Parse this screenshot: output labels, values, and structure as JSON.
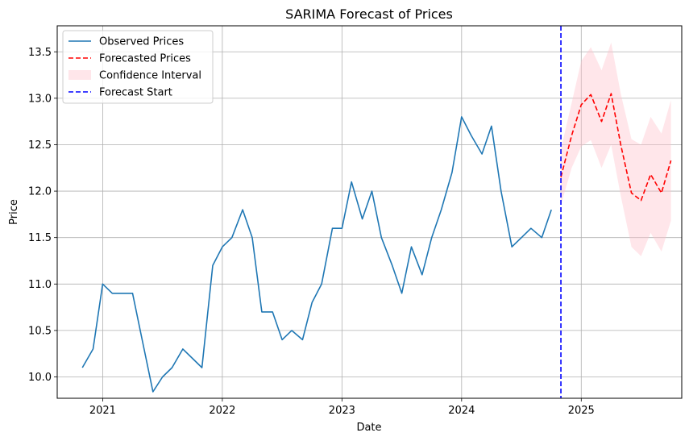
{
  "chart_data": {
    "type": "line",
    "title": "SARIMA Forecast of Prices",
    "xlabel": "Date",
    "ylabel": "Price",
    "x_ticks": [
      2021,
      2022,
      2023,
      2024,
      2025
    ],
    "x_tick_labels": [
      "2021",
      "2022",
      "2023",
      "2024",
      "2025"
    ],
    "xlim": [
      2020.62,
      2025.84
    ],
    "y_ticks": [
      10.0,
      10.5,
      11.0,
      11.5,
      12.0,
      12.5,
      13.0,
      13.5
    ],
    "y_tick_labels": [
      "10.0",
      "10.5",
      "11.0",
      "11.5",
      "12.0",
      "12.5",
      "13.0",
      "13.5"
    ],
    "ylim": [
      9.77,
      13.78
    ],
    "grid": true,
    "legend_position": "top-left",
    "series": [
      {
        "name": "Observed Prices",
        "style": "solid",
        "color": "#1f77b4",
        "x": [
          2020.83,
          2020.92,
          2021.0,
          2021.08,
          2021.17,
          2021.25,
          2021.33,
          2021.42,
          2021.5,
          2021.58,
          2021.67,
          2021.75,
          2021.83,
          2021.92,
          2022.0,
          2022.08,
          2022.17,
          2022.25,
          2022.33,
          2022.42,
          2022.5,
          2022.58,
          2022.67,
          2022.75,
          2022.83,
          2022.92,
          2023.0,
          2023.08,
          2023.17,
          2023.25,
          2023.33,
          2023.42,
          2023.5,
          2023.58,
          2023.67,
          2023.75,
          2023.83,
          2023.92,
          2024.0,
          2024.08,
          2024.17,
          2024.25,
          2024.33,
          2024.42,
          2024.5,
          2024.58,
          2024.67,
          2024.75
        ],
        "y": [
          10.1,
          10.3,
          11.0,
          10.9,
          10.9,
          10.9,
          10.4,
          9.84,
          10.0,
          10.1,
          10.3,
          10.2,
          10.1,
          11.2,
          11.4,
          11.5,
          11.8,
          11.5,
          10.7,
          10.7,
          10.4,
          10.5,
          10.4,
          10.8,
          11.0,
          11.6,
          11.6,
          12.1,
          11.7,
          12.0,
          11.5,
          11.2,
          10.9,
          11.4,
          11.1,
          11.5,
          11.8,
          12.2,
          12.8,
          12.6,
          12.4,
          12.7,
          12.0,
          11.4,
          11.5,
          11.6,
          11.5,
          11.8
        ]
      },
      {
        "name": "Forecasted Prices",
        "style": "dashed",
        "color": "#ff0000",
        "x": [
          2024.83,
          2024.92,
          2025.0,
          2025.08,
          2025.17,
          2025.25,
          2025.33,
          2025.42,
          2025.5,
          2025.58,
          2025.67,
          2025.75
        ],
        "y": [
          12.15,
          12.6,
          12.93,
          13.04,
          12.75,
          13.05,
          12.5,
          11.98,
          11.9,
          12.18,
          11.98,
          12.33
        ]
      }
    ],
    "confidence_interval": {
      "name": "Confidence Interval",
      "color": "#ffc0cb",
      "x": [
        2024.83,
        2024.92,
        2025.0,
        2025.08,
        2025.17,
        2025.25,
        2025.33,
        2025.42,
        2025.5,
        2025.58,
        2025.67,
        2025.75
      ],
      "lower": [
        11.85,
        12.25,
        12.48,
        12.55,
        12.25,
        12.5,
        11.95,
        11.4,
        11.3,
        11.55,
        11.35,
        11.68
      ],
      "upper": [
        12.45,
        12.95,
        13.4,
        13.55,
        13.3,
        13.6,
        13.05,
        12.56,
        12.5,
        12.8,
        12.62,
        12.98
      ]
    },
    "vertical_line": {
      "name": "Forecast Start",
      "x": 2024.83,
      "color": "#0000ff",
      "style": "dashed"
    },
    "legend": [
      {
        "label": "Observed Prices",
        "kind": "line-solid",
        "color": "#1f77b4"
      },
      {
        "label": "Forecasted Prices",
        "kind": "line-dashed",
        "color": "#ff0000"
      },
      {
        "label": "Confidence Interval",
        "kind": "patch",
        "color": "#ffc0cb"
      },
      {
        "label": "Forecast Start",
        "kind": "line-dashed",
        "color": "#0000ff"
      }
    ]
  }
}
